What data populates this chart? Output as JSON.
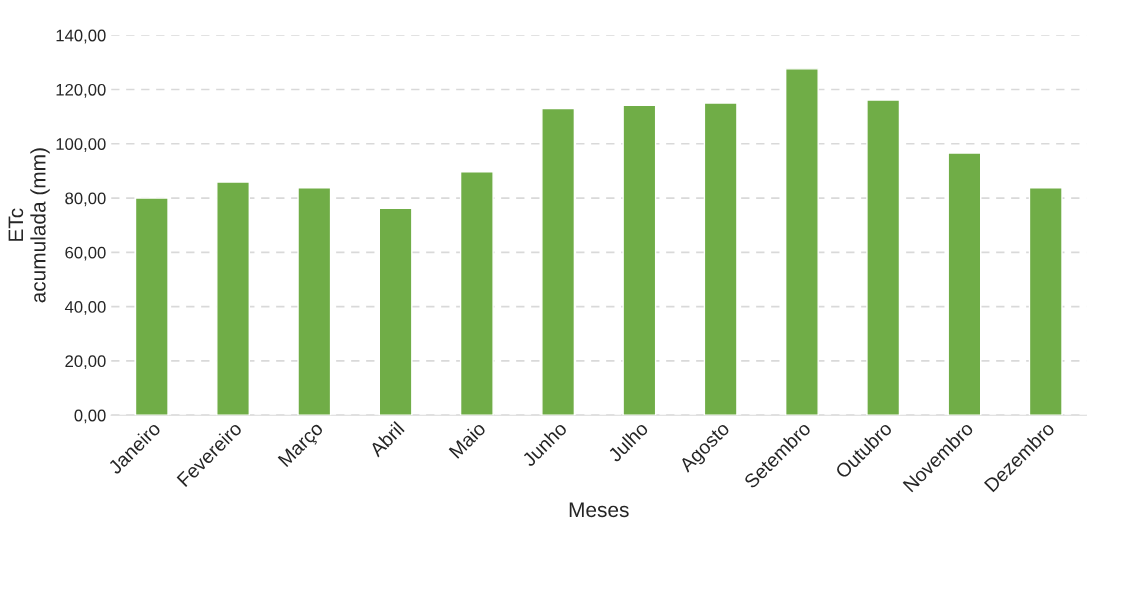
{
  "chart_data": {
    "type": "bar",
    "categories": [
      "Janeiro",
      "Fevereiro",
      "Março",
      "Abril",
      "Maio",
      "Junho",
      "Julho",
      "Agosto",
      "Setembro",
      "Outubro",
      "Novembro",
      "Dezembro"
    ],
    "values": [
      80.0,
      85.9,
      83.8,
      76.2,
      89.7,
      113.0,
      114.2,
      115.0,
      127.6,
      116.1,
      96.6,
      83.8
    ],
    "color": "#70ad47",
    "xlabel": "Meses",
    "ylabel": "ETc\nacumulada (mm)",
    "ylim": [
      0,
      140
    ],
    "yticks": [
      {
        "value": 0,
        "label": "0,00"
      },
      {
        "value": 20,
        "label": "20,00"
      },
      {
        "value": 40,
        "label": "40,00"
      },
      {
        "value": 60,
        "label": "60,00"
      },
      {
        "value": 80,
        "label": "80,00"
      },
      {
        "value": 100,
        "label": "100,00"
      },
      {
        "value": 120,
        "label": "120,00"
      },
      {
        "value": 140,
        "label": "140,00"
      }
    ],
    "grid": "y"
  }
}
